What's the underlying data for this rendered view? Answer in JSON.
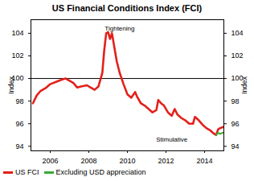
{
  "chart_data": {
    "type": "line",
    "title": "US Financial Conditions Index (FCI)",
    "y_label": "Index",
    "y2_label": "Index",
    "x": [
      2005.1,
      2005.3,
      2005.5,
      2005.8,
      2006.0,
      2006.3,
      2006.6,
      2006.8,
      2007.0,
      2007.2,
      2007.4,
      2007.6,
      2007.9,
      2008.1,
      2008.3,
      2008.5,
      2008.7,
      2008.8,
      2008.9,
      2009.0,
      2009.1,
      2009.2,
      2009.3,
      2009.45,
      2009.6,
      2009.8,
      2010.0,
      2010.2,
      2010.4,
      2010.5,
      2010.7,
      2010.9,
      2011.1,
      2011.3,
      2011.5,
      2011.6,
      2011.75,
      2011.9,
      2012.1,
      2012.3,
      2012.45,
      2012.6,
      2012.8,
      2013.0,
      2013.2,
      2013.4,
      2013.5,
      2013.7,
      2013.9,
      2014.1,
      2014.3,
      2014.5,
      2014.6,
      2014.7,
      2014.8,
      2014.95
    ],
    "series": [
      {
        "name": "US FCI",
        "color": "#e3201b",
        "values": [
          97.8,
          98.5,
          98.9,
          99.2,
          99.5,
          99.7,
          99.9,
          100.0,
          99.8,
          99.6,
          99.2,
          99.3,
          99.4,
          99.2,
          99.0,
          99.3,
          100.5,
          102.5,
          104.0,
          104.1,
          103.5,
          104.0,
          103.0,
          101.5,
          100.5,
          99.5,
          98.6,
          98.3,
          98.8,
          98.4,
          97.8,
          97.6,
          97.3,
          97.0,
          97.2,
          98.1,
          97.8,
          97.6,
          97.0,
          96.7,
          97.3,
          96.8,
          96.5,
          96.3,
          96.0,
          96.0,
          96.6,
          96.3,
          95.9,
          95.6,
          95.4,
          95.1,
          95.0,
          95.5,
          95.6,
          95.7
        ]
      },
      {
        "name": "Excluding USD appreciation",
        "color": "#3aa935",
        "values": [
          null,
          null,
          null,
          null,
          null,
          null,
          null,
          null,
          null,
          null,
          null,
          null,
          null,
          null,
          null,
          null,
          null,
          null,
          null,
          null,
          null,
          null,
          null,
          null,
          null,
          null,
          null,
          null,
          null,
          null,
          null,
          null,
          null,
          null,
          null,
          null,
          null,
          null,
          null,
          null,
          null,
          null,
          null,
          null,
          null,
          null,
          null,
          null,
          null,
          null,
          null,
          null,
          95.0,
          95.2,
          95.1,
          95.2
        ]
      }
    ],
    "hline": 100,
    "annotations": [
      {
        "text": "Tightening",
        "x": 2009.6,
        "y": 104.4
      },
      {
        "text": "Stimulative",
        "x": 2012.3,
        "y": 94.6
      }
    ],
    "xlim": [
      2005,
      2015
    ],
    "xticks": [
      2006,
      2008,
      2010,
      2012,
      2014
    ],
    "ylim": [
      93.6,
      105.2
    ],
    "yticks": [
      94,
      96,
      98,
      100,
      102,
      104
    ],
    "y2lim": [
      93.6,
      105.2
    ],
    "y2ticks": [
      94,
      96,
      98,
      100,
      102,
      104
    ],
    "legend": "bottom",
    "grid": false
  }
}
